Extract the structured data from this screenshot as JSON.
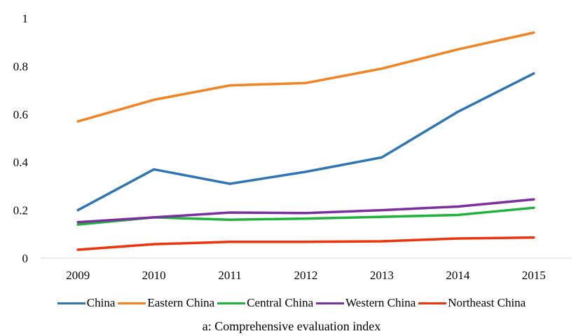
{
  "chart_data": {
    "type": "line",
    "categories": [
      "2009",
      "2010",
      "2011",
      "2012",
      "2013",
      "2014",
      "2015"
    ],
    "ylim": [
      0,
      1
    ],
    "yticks": [
      "0",
      "0.2",
      "0.4",
      "0.6",
      "0.8",
      "1"
    ],
    "grid": false,
    "legend_position": "bottom",
    "series": [
      {
        "name": "China",
        "color": "#2E75B6",
        "values": [
          0.2,
          0.37,
          0.31,
          0.36,
          0.42,
          0.61,
          0.77
        ]
      },
      {
        "name": "Eastern China",
        "color": "#F58220",
        "values": [
          0.57,
          0.66,
          0.72,
          0.73,
          0.79,
          0.87,
          0.94
        ]
      },
      {
        "name": "Central China",
        "color": "#1DB33A",
        "values": [
          0.14,
          0.17,
          0.16,
          0.165,
          0.172,
          0.18,
          0.21
        ]
      },
      {
        "name": "Western China",
        "color": "#7B2FA0",
        "values": [
          0.15,
          0.17,
          0.19,
          0.188,
          0.2,
          0.215,
          0.245
        ]
      },
      {
        "name": "Northeast China",
        "color": "#F0320A",
        "values": [
          0.035,
          0.058,
          0.068,
          0.068,
          0.07,
          0.082,
          0.086
        ]
      }
    ],
    "caption": "a: Comprehensive  evaluation  index"
  }
}
